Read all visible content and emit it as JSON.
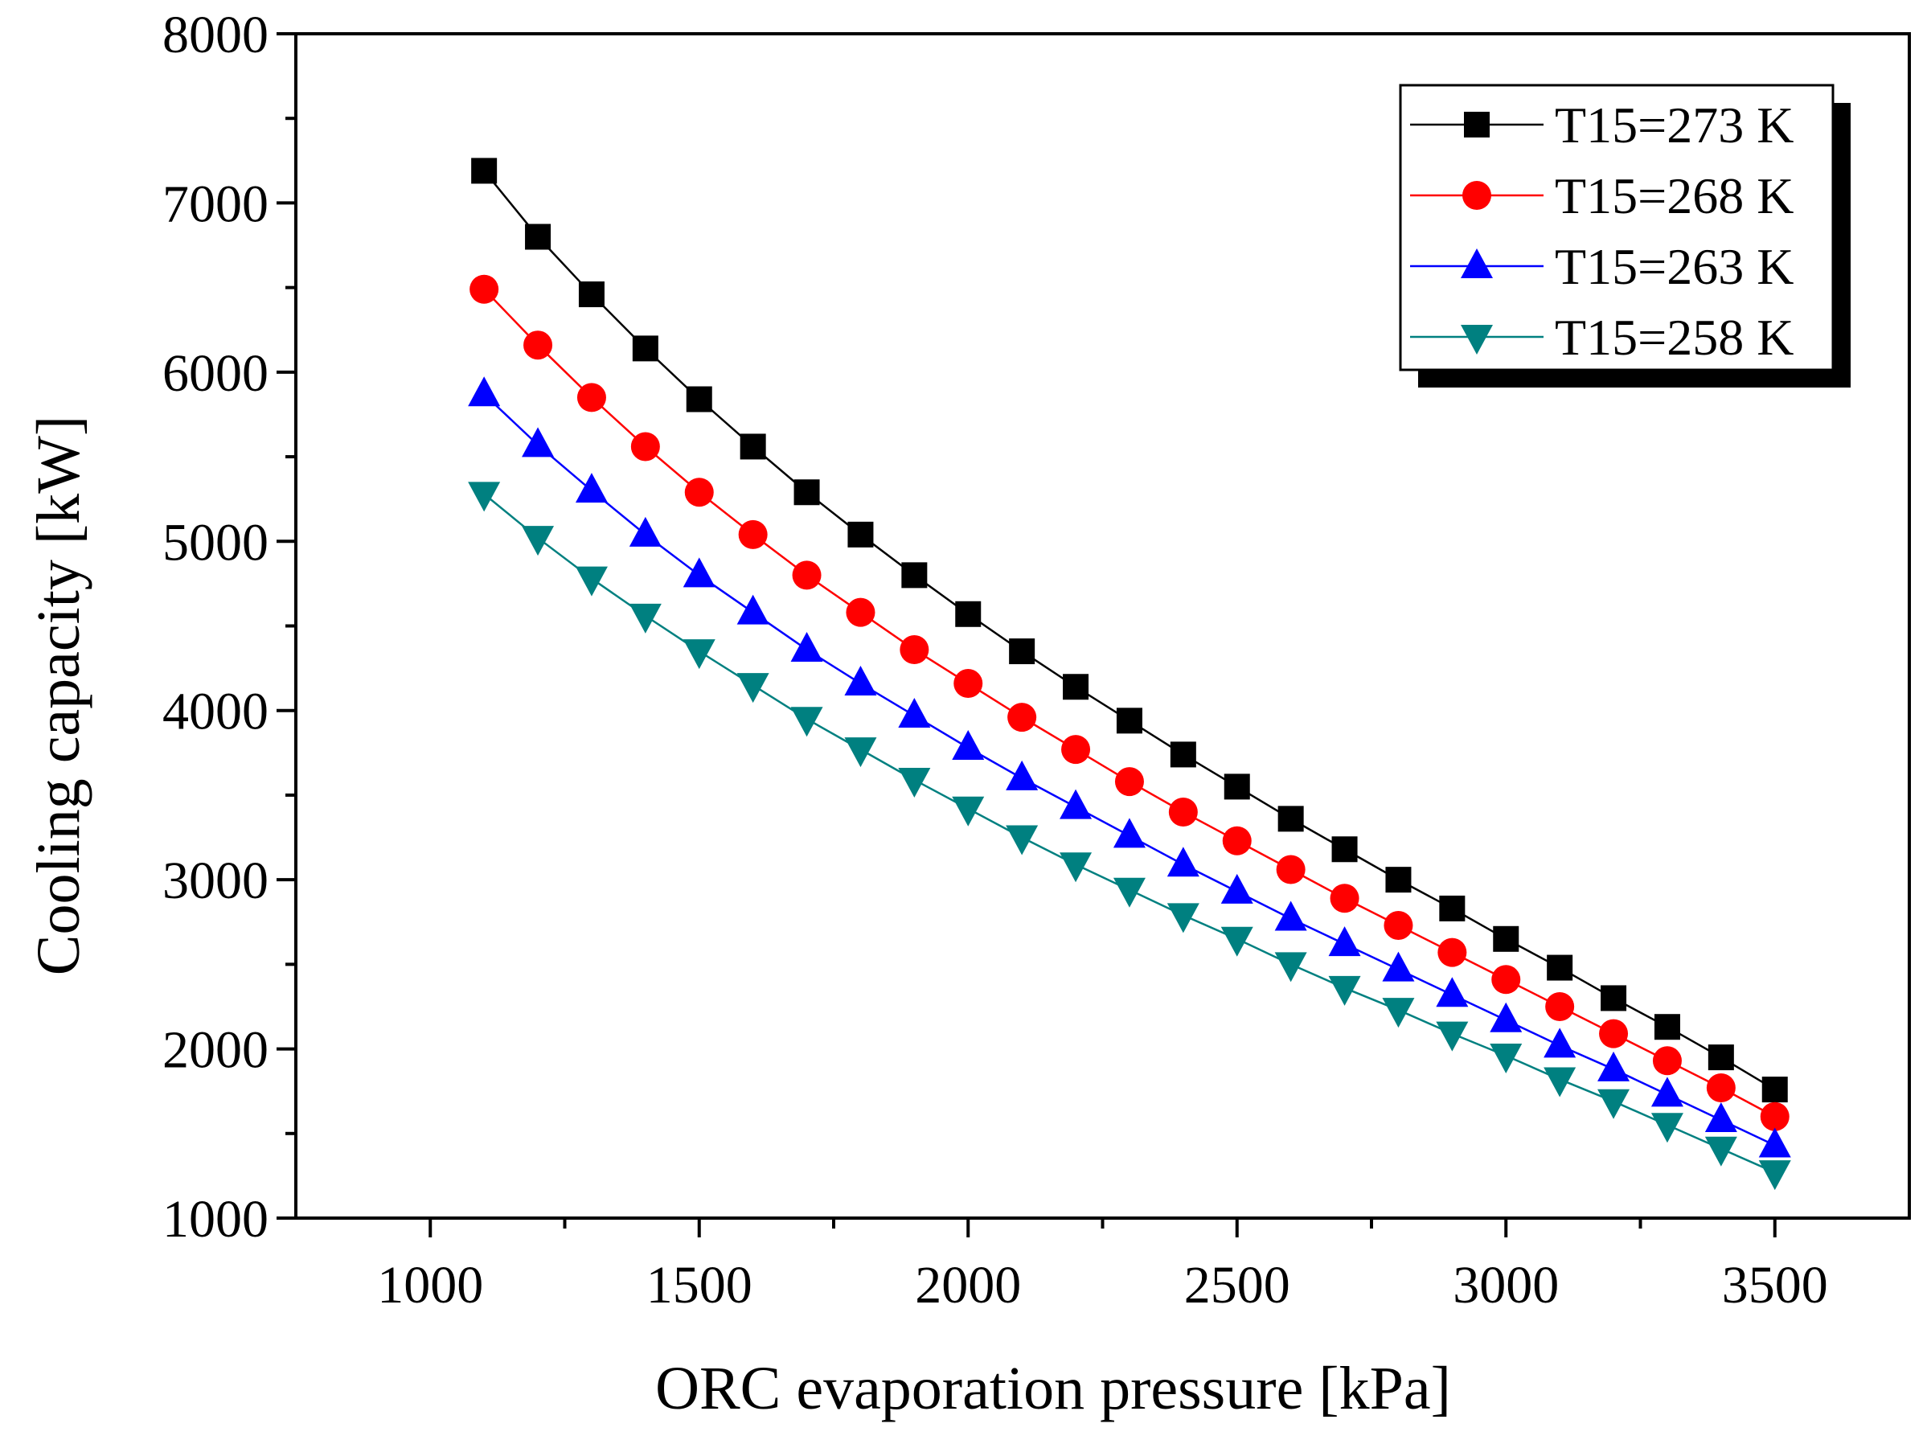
{
  "chart_data": {
    "type": "line",
    "title": "",
    "xlabel": "ORC evaporation pressure [kPa]",
    "ylabel": "Cooling capacity [kW]",
    "xlim": [
      750,
      3750
    ],
    "ylim": [
      1000,
      8000
    ],
    "xticks": [
      1000,
      1500,
      2000,
      2500,
      3000,
      3500
    ],
    "yticks": [
      1000,
      2000,
      3000,
      4000,
      5000,
      6000,
      7000,
      8000
    ],
    "x": [
      1100,
      1200,
      1300,
      1400,
      1500,
      1600,
      1700,
      1800,
      1900,
      2000,
      2100,
      2200,
      2300,
      2400,
      2500,
      2600,
      2700,
      2800,
      2900,
      3000,
      3100,
      3200,
      3300,
      3400,
      3500
    ],
    "legend_position": "top-right",
    "grid": false,
    "series": [
      {
        "name": "T15=273 K",
        "marker": "square",
        "color": "#000000",
        "values": [
          7190,
          6800,
          6460,
          6140,
          5840,
          5560,
          5290,
          5040,
          4800,
          4570,
          4350,
          4140,
          3940,
          3740,
          3550,
          3360,
          3180,
          3000,
          2830,
          2650,
          2480,
          2300,
          2130,
          1950,
          1760
        ]
      },
      {
        "name": "T15=268 K",
        "marker": "circle",
        "color": "#ff0000",
        "values": [
          6490,
          6160,
          5850,
          5560,
          5290,
          5040,
          4800,
          4580,
          4360,
          4160,
          3960,
          3770,
          3580,
          3400,
          3230,
          3060,
          2890,
          2730,
          2570,
          2410,
          2250,
          2090,
          1930,
          1770,
          1600
        ]
      },
      {
        "name": "T15=263 K",
        "marker": "triangle-up",
        "color": "#0000ff",
        "values": [
          5870,
          5570,
          5300,
          5040,
          4800,
          4580,
          4360,
          4160,
          3970,
          3780,
          3600,
          3430,
          3260,
          3090,
          2930,
          2770,
          2620,
          2470,
          2320,
          2170,
          2020,
          1880,
          1730,
          1580,
          1430
        ]
      },
      {
        "name": "T15=258 K",
        "marker": "triangle-down",
        "color": "#008080",
        "values": [
          5280,
          5020,
          4780,
          4560,
          4350,
          4150,
          3950,
          3770,
          3590,
          3420,
          3250,
          3090,
          2940,
          2790,
          2650,
          2500,
          2360,
          2230,
          2090,
          1960,
          1820,
          1690,
          1550,
          1410,
          1270
        ]
      }
    ]
  }
}
